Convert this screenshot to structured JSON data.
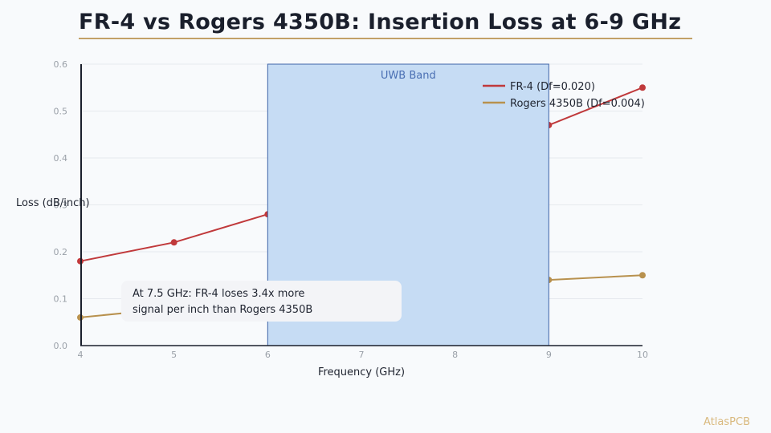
{
  "title": "FR-4 vs Rogers 4350B: Insertion Loss at 6-9 GHz",
  "brand": "AtlasPCB",
  "colors": {
    "title_rule": "#c2a067",
    "fr4": "#c0393b",
    "rogers": "#b8914e",
    "band_fill": "#c6dcf4",
    "band_stroke": "#3e64a8",
    "axis": "#1a1f2c"
  },
  "annotation": {
    "line1": "At 7.5 GHz: FR-4 loses 3.4x more",
    "line2": "signal per inch than Rogers 4350B"
  },
  "chart_data": {
    "type": "line",
    "title": "FR-4 vs Rogers 4350B: Insertion Loss at 6-9 GHz",
    "xlabel": "Frequency (GHz)",
    "ylabel": "Loss (dB/inch)",
    "xlim": [
      4,
      10
    ],
    "ylim": [
      0,
      0.6
    ],
    "xticks": [
      "4",
      "5",
      "6",
      "7",
      "8",
      "9",
      "10"
    ],
    "yticks": [
      "0.0",
      "0.1",
      "0.2",
      "0.3",
      "0.4",
      "0.5",
      "0.6"
    ],
    "grid": true,
    "legend_position": "top-right",
    "band": {
      "label": "UWB Band",
      "x_start": 6,
      "x_end": 9
    },
    "series": [
      {
        "name": "FR-4 (Df=0.020)",
        "color": "#c0393b",
        "x": [
          4,
          5,
          6,
          9,
          10
        ],
        "y": [
          0.18,
          0.22,
          0.28,
          0.47,
          0.55
        ]
      },
      {
        "name": "Rogers 4350B (Df=0.004)",
        "color": "#b8914e",
        "x": [
          4,
          5,
          9,
          10
        ],
        "y": [
          0.06,
          0.08,
          0.14,
          0.15
        ]
      }
    ]
  }
}
